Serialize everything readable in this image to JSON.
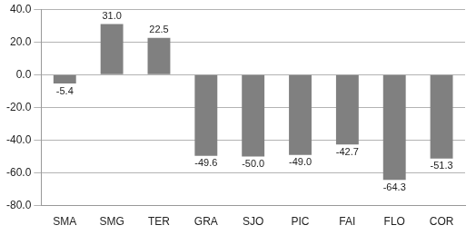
{
  "chart_data": {
    "type": "bar",
    "categories": [
      "SMA",
      "SMG",
      "TER",
      "GRA",
      "SJO",
      "PIC",
      "FAI",
      "FLO",
      "COR"
    ],
    "values": [
      -5.4,
      31.0,
      22.5,
      -49.6,
      -50.0,
      -49.0,
      -42.7,
      -64.3,
      -51.3
    ],
    "value_labels": [
      "-5.4",
      "31.0",
      "22.5",
      "-49.6",
      "-50.0",
      "-49.0",
      "-42.7",
      "-64.3",
      "-51.3"
    ],
    "color": "#808080",
    "ylim": [
      -80,
      40
    ],
    "yticks": [
      {
        "value": -80,
        "label": "-80.0"
      },
      {
        "value": -60,
        "label": "-60.0"
      },
      {
        "value": -40,
        "label": "-40.0"
      },
      {
        "value": -20,
        "label": "-20.0"
      },
      {
        "value": 0,
        "label": "0.0"
      },
      {
        "value": 20,
        "label": "20.0"
      },
      {
        "value": 40,
        "label": "40.0"
      }
    ],
    "grid": true,
    "data_labels": true
  }
}
